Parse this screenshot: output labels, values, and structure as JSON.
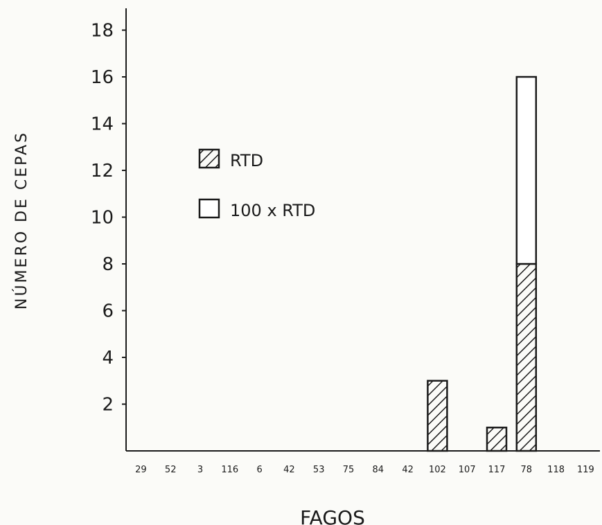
{
  "chart_data": {
    "type": "bar",
    "stacked": true,
    "xlabel": "FAGOS",
    "ylabel": "NÚMERO DE CEPAS",
    "ylim": [
      0,
      19
    ],
    "yticks": [
      2,
      4,
      6,
      8,
      10,
      12,
      14,
      16,
      18
    ],
    "categories": [
      "29",
      "52",
      "3",
      "116",
      "6",
      "42",
      "53",
      "75",
      "84",
      "42",
      "102",
      "107",
      "117",
      "78",
      "118",
      "119"
    ],
    "series": [
      {
        "name": "RTD",
        "pattern": "hatched",
        "values": [
          0,
          0,
          0,
          0,
          0,
          0,
          0,
          0,
          0,
          0,
          3,
          0,
          1,
          8,
          0,
          0
        ]
      },
      {
        "name": "100 x RTD",
        "pattern": "empty",
        "values": [
          0,
          0,
          0,
          0,
          0,
          0,
          0,
          0,
          0,
          0,
          0,
          0,
          0,
          8,
          0,
          0
        ]
      }
    ],
    "legend": "upper-left",
    "grid": false
  }
}
